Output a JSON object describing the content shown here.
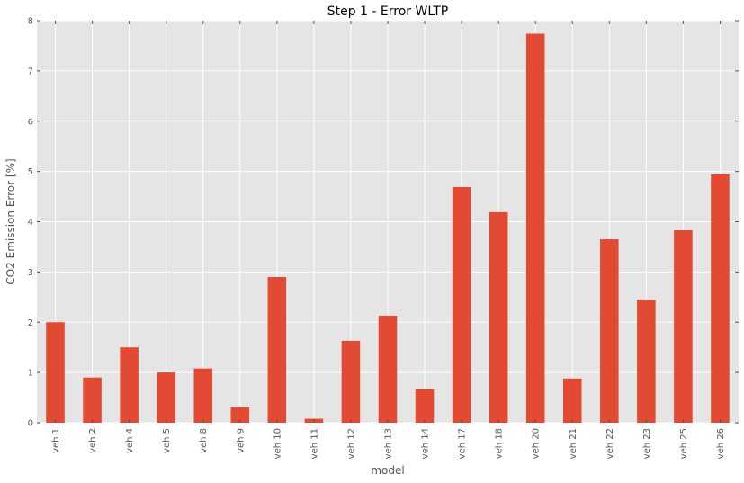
{
  "chart_data": {
    "type": "bar",
    "title": "Step 1 - Error WLTP",
    "xlabel": "model",
    "ylabel": "CO2 Emission Error [%]",
    "categories": [
      "veh 1",
      "veh 2",
      "veh 4",
      "veh 5",
      "veh 8",
      "veh 9",
      "veh 10",
      "veh 11",
      "veh 12",
      "veh 13",
      "veh 14",
      "veh 17",
      "veh 18",
      "veh 20",
      "veh 21",
      "veh 22",
      "veh 23",
      "veh 25",
      "veh 26"
    ],
    "values": [
      2.0,
      0.9,
      1.5,
      1.0,
      1.08,
      0.31,
      2.9,
      0.08,
      1.63,
      2.13,
      0.67,
      4.69,
      4.19,
      7.74,
      0.88,
      3.65,
      2.45,
      3.83,
      4.94
    ],
    "ylim": [
      0,
      8
    ],
    "yticks": [
      0,
      1,
      2,
      3,
      4,
      5,
      6,
      7,
      8
    ],
    "grid": true,
    "bar_color": "#E24A33",
    "background_color": "#E5E5E5",
    "grid_color": "#FFFFFF"
  }
}
